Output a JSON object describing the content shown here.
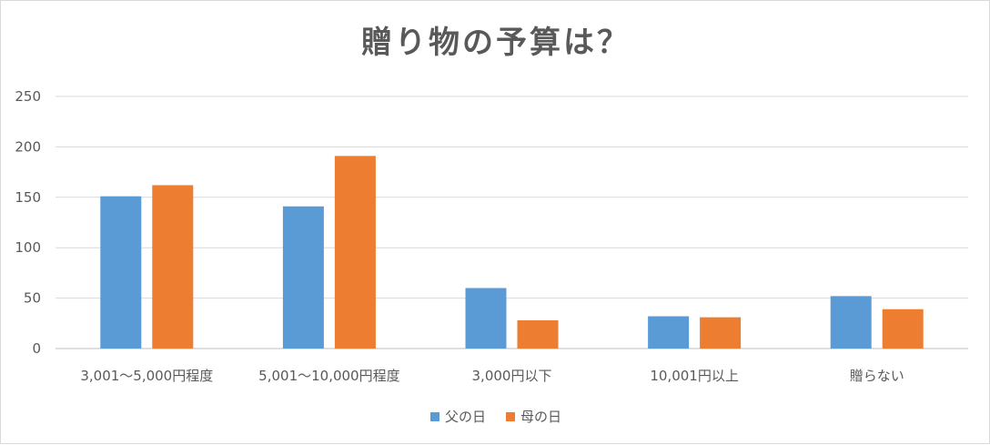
{
  "chart_data": {
    "type": "bar",
    "title": "贈り物の予算は？",
    "categories": [
      "3,001～5,000円程度",
      "5,001～10,000円程度",
      "3,000円以下",
      "10,001円以上",
      "贈らない"
    ],
    "series": [
      {
        "name": "父の日",
        "color": "#5b9bd5",
        "values": [
          151,
          141,
          60,
          32,
          52
        ]
      },
      {
        "name": "母の日",
        "color": "#ed7d31",
        "values": [
          162,
          191,
          28,
          31,
          39
        ]
      }
    ],
    "ylim": [
      0,
      250
    ],
    "yticks": [
      0,
      50,
      100,
      150,
      200,
      250
    ],
    "grid": true,
    "legend": "bottom",
    "xlabel": "",
    "ylabel": ""
  }
}
